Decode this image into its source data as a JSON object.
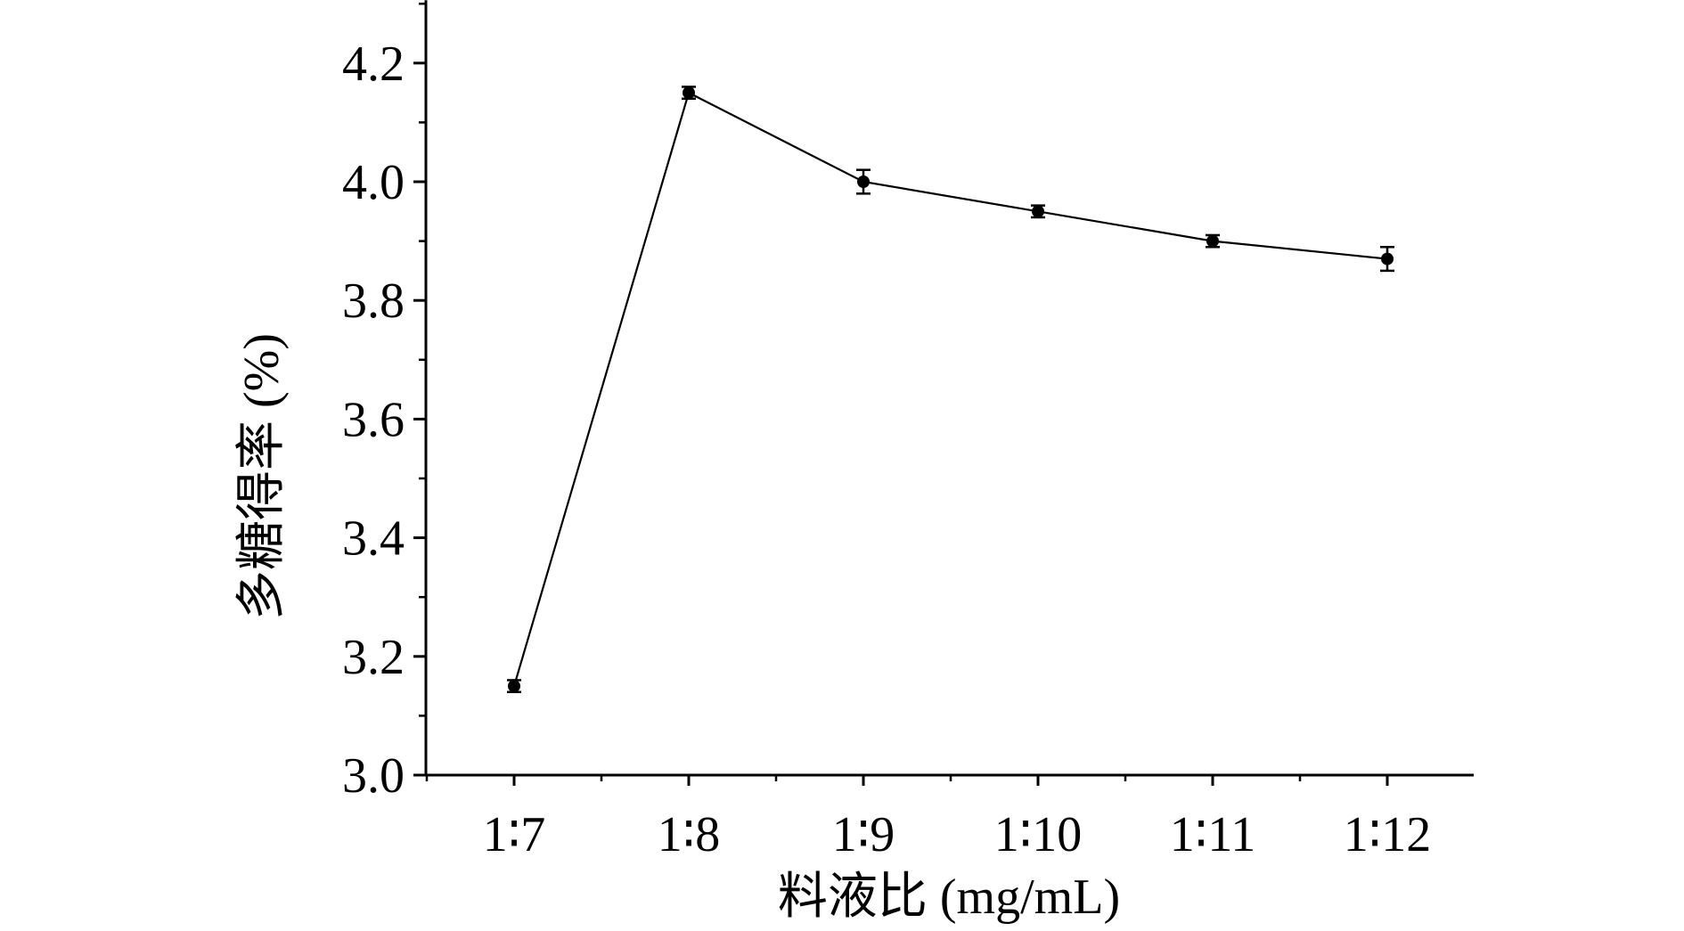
{
  "chart_data": {
    "type": "line",
    "title": "",
    "xlabel": "料液比 (mg/mL)",
    "ylabel": "多糖得率 (%)",
    "categories": [
      "1:7",
      "1:8",
      "1:9",
      "1:10",
      "1:11",
      "1:12"
    ],
    "series": [
      {
        "values": [
          3.15,
          4.15,
          4.0,
          3.95,
          3.9,
          3.87
        ],
        "errors": [
          0.01,
          0.01,
          0.02,
          0.01,
          0.01,
          0.02
        ]
      }
    ],
    "ylim": [
      3.0,
      4.3
    ],
    "yticks": [
      "3.0",
      "3.2",
      "3.4",
      "3.6",
      "3.8",
      "4.0",
      "4.2"
    ],
    "grid": false,
    "legend": "none",
    "colors": {
      "line": "#000000",
      "marker": "#000000",
      "axis": "#000000"
    }
  }
}
